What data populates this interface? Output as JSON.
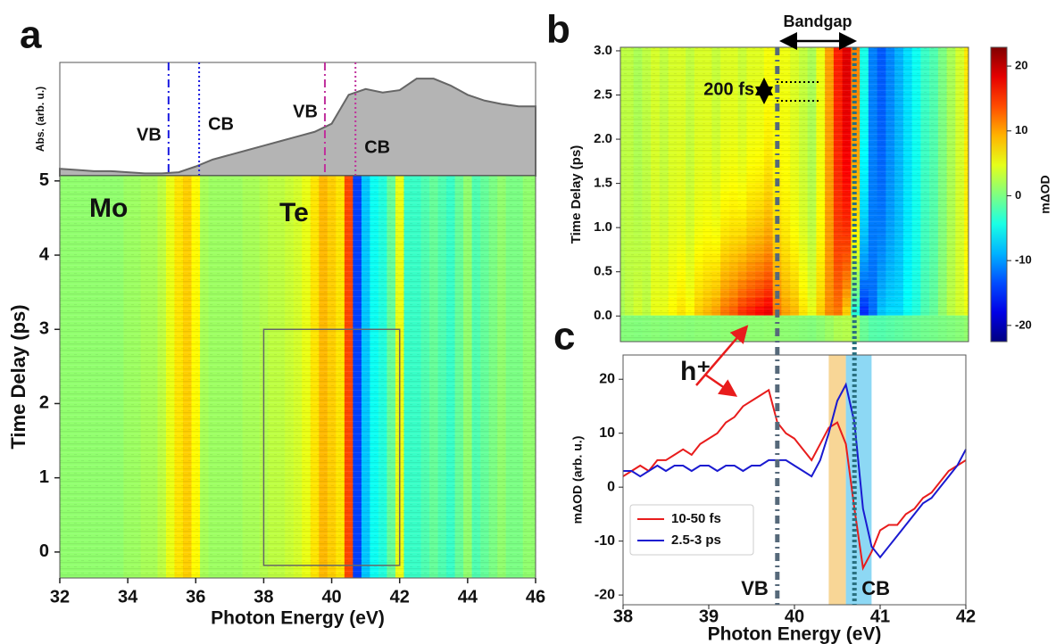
{
  "chart_data": [
    {
      "type": "area",
      "panel": "a",
      "ylabel": "Abs. (arb. u.)",
      "x": [
        32,
        32.5,
        33,
        33.5,
        34,
        34.5,
        35,
        35.5,
        36,
        36.5,
        37,
        37.5,
        38,
        38.5,
        39,
        39.5,
        40,
        40.5,
        41,
        41.5,
        42,
        42.5,
        43,
        43.5,
        44,
        44.5,
        45,
        45.5,
        46
      ],
      "values": [
        0.06,
        0.05,
        0.04,
        0.04,
        0.03,
        0.02,
        0.02,
        0.03,
        0.08,
        0.14,
        0.18,
        0.22,
        0.26,
        0.3,
        0.34,
        0.38,
        0.45,
        0.7,
        0.75,
        0.72,
        0.74,
        0.84,
        0.84,
        0.78,
        0.7,
        0.65,
        0.62,
        0.6,
        0.6
      ],
      "color": "#b4b4b4",
      "xlim": [
        32,
        46
      ],
      "ylim": [
        0,
        0.98
      ],
      "markers": [
        {
          "label": "VB",
          "x": 35.2,
          "color": "#1a1ae0",
          "style": "dashdot"
        },
        {
          "label": "CB",
          "x": 36.1,
          "color": "#1a1ae0",
          "style": "dotted"
        },
        {
          "label": "VB",
          "x": 39.8,
          "color": "#c0309c",
          "style": "dashdot"
        },
        {
          "label": "CB",
          "x": 40.7,
          "color": "#c0309c",
          "style": "dotted"
        }
      ]
    },
    {
      "type": "heatmap",
      "xlabel": "Photon Energy (eV)",
      "ylabel": "Time Delay (ps)",
      "x": [
        32,
        32.25,
        32.5,
        32.75,
        33,
        33.25,
        33.5,
        33.75,
        34,
        34.25,
        34.5,
        34.75,
        35,
        35.25,
        35.5,
        35.75,
        36,
        36.25,
        36.5,
        36.75,
        37,
        37.25,
        37.5,
        37.75,
        38,
        38.25,
        38.5,
        38.75,
        39,
        39.25,
        39.5,
        39.75,
        40,
        40.25,
        40.5,
        40.75,
        41,
        41.25,
        41.5,
        41.75,
        42,
        42.25,
        42.5,
        42.75,
        43,
        43.25,
        43.5,
        43.75,
        44,
        44.25,
        44.5,
        44.75,
        45,
        45.25,
        45.5,
        45.75,
        46
      ],
      "values": [
        1,
        1,
        1,
        1,
        1,
        1,
        1,
        1,
        1.5,
        1.5,
        2,
        2,
        3,
        5,
        7,
        8,
        6,
        2,
        1.5,
        1.5,
        1.5,
        1.5,
        2,
        2,
        2.5,
        3,
        3,
        3.5,
        4,
        5,
        7,
        9,
        8,
        7,
        14,
        -14,
        -8,
        -5,
        -4,
        -1,
        5,
        -3,
        -3,
        -2,
        -1,
        -2,
        -3,
        -1,
        1,
        -2,
        -1,
        0,
        1,
        0,
        0,
        1,
        1
      ],
      "xlim": [
        32,
        46
      ],
      "ylim": [
        -0.35,
        5.07
      ],
      "xticks": [
        32,
        34,
        36,
        38,
        40,
        42,
        44,
        46
      ],
      "yticks": [
        0,
        1,
        2,
        3,
        4,
        5
      ],
      "annotations": [
        {
          "text": "Mo",
          "color": "#1a1ae0"
        },
        {
          "text": "Te",
          "color": "#c0309c"
        }
      ],
      "box": {
        "x": [
          38,
          42
        ],
        "y": [
          -0.18,
          3
        ]
      }
    },
    {
      "type": "heatmap-time",
      "panel": "b",
      "ylabel": "Time Delay (ps)",
      "xlim": [
        38,
        42
      ],
      "ylim": [
        -0.29,
        3.04
      ],
      "yticks": [
        {
          "value": 0,
          "label": "0.0"
        },
        0.5,
        {
          "value": 1,
          "label": "1.0"
        },
        1.5,
        {
          "value": 2,
          "label": "2.0"
        },
        2.5,
        {
          "value": 3,
          "label": "3.0"
        }
      ],
      "annotations": [
        "Bandgap",
        "200 fs"
      ],
      "clim": [
        -22.5,
        22.9
      ],
      "cticks": [
        -20,
        -10,
        0,
        10,
        20
      ],
      "clabel": "mΔOD"
    },
    {
      "type": "line",
      "panel": "c",
      "xlabel": "Photon Energy (eV)",
      "ylabel": "mΔOD (arb. u.)",
      "x": [
        38,
        38.1,
        38.2,
        38.3,
        38.4,
        38.5,
        38.6,
        38.7,
        38.8,
        38.9,
        39,
        39.1,
        39.2,
        39.3,
        39.4,
        39.5,
        39.6,
        39.7,
        39.8,
        39.9,
        40,
        40.1,
        40.2,
        40.3,
        40.4,
        40.5,
        40.6,
        40.7,
        40.8,
        40.9,
        41,
        41.1,
        41.2,
        41.3,
        41.4,
        41.5,
        41.6,
        41.7,
        41.8,
        41.9,
        42
      ],
      "series": [
        {
          "name": "10-50 fs",
          "color": "#e81c1c",
          "values": [
            2,
            3,
            4,
            3,
            5,
            5,
            6,
            7,
            6,
            8,
            9,
            10,
            12,
            13,
            15,
            16,
            17,
            18,
            12,
            10,
            9,
            7,
            5,
            8,
            11,
            12,
            8,
            -4,
            -15,
            -12,
            -8,
            -7,
            -7,
            -5,
            -4,
            -2,
            -1,
            1,
            3,
            4,
            5
          ]
        },
        {
          "name": "2.5-3 ps",
          "color": "#1a1ad0",
          "values": [
            3,
            3,
            2,
            3,
            4,
            3,
            4,
            4,
            3,
            4,
            4,
            3,
            4,
            4,
            3,
            4,
            4,
            5,
            5,
            5,
            4,
            3,
            2,
            5,
            10,
            16,
            19,
            12,
            -4,
            -11,
            -13,
            -11,
            -9,
            -7,
            -5,
            -3,
            -2,
            0,
            2,
            4,
            7
          ]
        }
      ],
      "xlim": [
        38,
        42
      ],
      "ylim": [
        -21.8,
        24.5
      ],
      "xticks": [
        38,
        39,
        40,
        41,
        42
      ],
      "yticks": [
        -20,
        -10,
        0,
        10,
        20
      ],
      "legend": "lower left",
      "bands": [
        {
          "x": [
            40.4,
            40.6
          ],
          "color": "#f5c46a"
        },
        {
          "x": [
            40.6,
            40.9
          ],
          "color": "#5cc8f0"
        }
      ],
      "vlines": [
        39.8,
        40.7
      ],
      "annotations": [
        {
          "text": "VB",
          "color": "#c0309c"
        },
        {
          "text": "CB",
          "color": "#c0309c"
        },
        {
          "text": "h⁺",
          "color": "#e81c1c"
        }
      ]
    }
  ]
}
